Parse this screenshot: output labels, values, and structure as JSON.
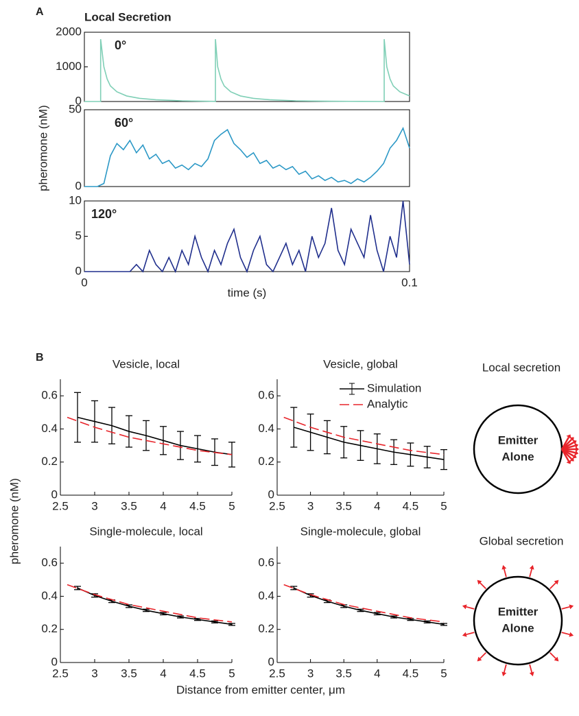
{
  "panels": [
    "A",
    "B"
  ],
  "chart_data": [
    {
      "type": "line",
      "title": "Local Secretion",
      "label": "0°",
      "box": true,
      "x": [
        0,
        0.005,
        0.005,
        0.006,
        0.007,
        0.008,
        0.01,
        0.013,
        0.017,
        0.022,
        0.03,
        0.0403,
        0.0403,
        0.041,
        0.042,
        0.043,
        0.045,
        0.048,
        0.052,
        0.057,
        0.065,
        0.075,
        0.085,
        0.0922,
        0.0922,
        0.093,
        0.094,
        0.095,
        0.097,
        0.1
      ],
      "series": [
        {
          "color": "#7fcfb6",
          "values": [
            0,
            0,
            1800,
            1000,
            650,
            450,
            280,
            160,
            90,
            50,
            20,
            5,
            1800,
            1000,
            650,
            450,
            280,
            160,
            90,
            50,
            20,
            8,
            3,
            0,
            1800,
            1000,
            650,
            450,
            280,
            160
          ]
        }
      ],
      "xlim": [
        0,
        0.1
      ],
      "ylim": [
        0,
        2000
      ],
      "yticks": [
        0,
        1000,
        2000
      ]
    },
    {
      "type": "line",
      "label": "60°",
      "ylabel": "pheromone (nM)",
      "box": true,
      "x": [
        0,
        0.002,
        0.004,
        0.006,
        0.008,
        0.01,
        0.012,
        0.014,
        0.016,
        0.018,
        0.02,
        0.022,
        0.024,
        0.026,
        0.028,
        0.03,
        0.032,
        0.034,
        0.036,
        0.038,
        0.04,
        0.042,
        0.044,
        0.046,
        0.048,
        0.05,
        0.052,
        0.054,
        0.056,
        0.058,
        0.06,
        0.062,
        0.064,
        0.066,
        0.068,
        0.07,
        0.072,
        0.074,
        0.076,
        0.078,
        0.08,
        0.082,
        0.084,
        0.086,
        0.088,
        0.09,
        0.092,
        0.094,
        0.096,
        0.098,
        0.1
      ],
      "series": [
        {
          "color": "#2b98c6",
          "values": [
            0,
            0,
            0,
            2,
            20,
            28,
            24,
            30,
            22,
            27,
            18,
            21,
            15,
            17,
            12,
            14,
            11,
            15,
            13,
            18,
            30,
            34,
            37,
            28,
            24,
            19,
            22,
            15,
            17,
            12,
            14,
            11,
            13,
            8,
            10,
            5,
            7,
            4,
            6,
            3,
            4,
            2,
            5,
            3,
            6,
            10,
            15,
            25,
            30,
            38,
            25
          ]
        }
      ],
      "xlim": [
        0,
        0.1
      ],
      "ylim": [
        0,
        50
      ],
      "yticks": [
        0,
        50
      ]
    },
    {
      "type": "line",
      "label": "120°",
      "xlabel": "time (s)",
      "box": true,
      "x": [
        0,
        0.002,
        0.004,
        0.006,
        0.008,
        0.01,
        0.012,
        0.014,
        0.016,
        0.018,
        0.02,
        0.022,
        0.024,
        0.026,
        0.028,
        0.03,
        0.032,
        0.034,
        0.036,
        0.038,
        0.04,
        0.042,
        0.044,
        0.046,
        0.048,
        0.05,
        0.052,
        0.054,
        0.056,
        0.058,
        0.06,
        0.062,
        0.064,
        0.066,
        0.068,
        0.07,
        0.072,
        0.074,
        0.076,
        0.078,
        0.08,
        0.082,
        0.084,
        0.086,
        0.088,
        0.09,
        0.092,
        0.094,
        0.096,
        0.098,
        0.1
      ],
      "series": [
        {
          "color": "#1f2e8c",
          "values": [
            0,
            0,
            0,
            0,
            0,
            0,
            0,
            0,
            1,
            0,
            3,
            1,
            0,
            2,
            0,
            3,
            1,
            5,
            2,
            0,
            3,
            1,
            4,
            6,
            2,
            0,
            3,
            5,
            1,
            0,
            2,
            4,
            1,
            3,
            0,
            5,
            2,
            4,
            9,
            3,
            1,
            6,
            4,
            2,
            8,
            3,
            0,
            5,
            2,
            10,
            1
          ]
        }
      ],
      "xlim": [
        0,
        0.1
      ],
      "ylim": [
        0,
        10
      ],
      "xticks": [
        0,
        0.1
      ],
      "yticks": [
        0,
        5,
        10
      ]
    },
    {
      "type": "line",
      "title": "Vesicle, local",
      "box": false,
      "series": [
        {
          "color": "#000000",
          "x": [
            2.75,
            3,
            3.25,
            3.5,
            3.75,
            4,
            4.25,
            4.5,
            4.75,
            5
          ],
          "values": [
            0.47,
            0.445,
            0.42,
            0.385,
            0.36,
            0.33,
            0.3,
            0.28,
            0.26,
            0.245
          ],
          "errors": [
            0.15,
            0.125,
            0.11,
            0.095,
            0.09,
            0.085,
            0.085,
            0.08,
            0.08,
            0.075
          ]
        },
        {
          "color": "#e8242a",
          "dashed": true,
          "x": [
            2.6,
            3,
            3.5,
            4,
            4.5,
            5
          ],
          "values": [
            0.47,
            0.41,
            0.35,
            0.31,
            0.27,
            0.245
          ]
        }
      ],
      "xlim": [
        2.5,
        5
      ],
      "ylim": [
        0,
        0.7
      ],
      "xticks": [
        2.5,
        3,
        3.5,
        4,
        4.5,
        5
      ],
      "yticks": [
        0,
        0.2,
        0.4,
        0.6
      ]
    },
    {
      "type": "line",
      "title": "Vesicle, global",
      "box": false,
      "legend": "upper right",
      "series": [
        {
          "name": "Simulation",
          "color": "#000000",
          "x": [
            2.75,
            3,
            3.25,
            3.5,
            3.75,
            4,
            4.25,
            4.5,
            4.75,
            5
          ],
          "values": [
            0.41,
            0.38,
            0.35,
            0.32,
            0.3,
            0.28,
            0.26,
            0.245,
            0.23,
            0.215
          ],
          "errors": [
            0.12,
            0.11,
            0.1,
            0.095,
            0.09,
            0.09,
            0.075,
            0.07,
            0.065,
            0.06
          ]
        },
        {
          "name": "Analytic",
          "color": "#e8242a",
          "dashed": true,
          "x": [
            2.6,
            3,
            3.5,
            4,
            4.5,
            5
          ],
          "values": [
            0.47,
            0.41,
            0.35,
            0.31,
            0.27,
            0.245
          ]
        }
      ],
      "xlim": [
        2.5,
        5
      ],
      "ylim": [
        0,
        0.7
      ],
      "xticks": [
        2.5,
        3,
        3.5,
        4,
        4.5,
        5
      ],
      "yticks": [
        0,
        0.2,
        0.4,
        0.6
      ]
    },
    {
      "type": "line",
      "title": "Single-molecule, local",
      "box": false,
      "series": [
        {
          "color": "#000000",
          "x": [
            2.75,
            3,
            3.25,
            3.5,
            3.75,
            4,
            4.25,
            4.5,
            4.75,
            5
          ],
          "values": [
            0.45,
            0.405,
            0.37,
            0.34,
            0.315,
            0.295,
            0.275,
            0.26,
            0.245,
            0.23
          ],
          "errors": [
            0.01,
            0.01,
            0.008,
            0.008,
            0.007,
            0.007,
            0.006,
            0.006,
            0.006,
            0.006
          ]
        },
        {
          "color": "#e8242a",
          "dashed": true,
          "x": [
            2.6,
            3,
            3.5,
            4,
            4.5,
            5
          ],
          "values": [
            0.47,
            0.41,
            0.35,
            0.31,
            0.27,
            0.245
          ]
        }
      ],
      "xlim": [
        2.5,
        5
      ],
      "ylim": [
        0,
        0.7
      ],
      "xticks": [
        2.5,
        3,
        3.5,
        4,
        4.5,
        5
      ],
      "yticks": [
        0,
        0.2,
        0.4,
        0.6
      ]
    },
    {
      "type": "line",
      "title": "Single-molecule, global",
      "box": false,
      "series": [
        {
          "color": "#000000",
          "x": [
            2.75,
            3,
            3.25,
            3.5,
            3.75,
            4,
            4.25,
            4.5,
            4.75,
            5
          ],
          "values": [
            0.45,
            0.405,
            0.37,
            0.34,
            0.315,
            0.295,
            0.275,
            0.26,
            0.245,
            0.23
          ],
          "errors": [
            0.01,
            0.01,
            0.008,
            0.008,
            0.007,
            0.007,
            0.006,
            0.006,
            0.006,
            0.006
          ]
        },
        {
          "color": "#e8242a",
          "dashed": true,
          "x": [
            2.6,
            3,
            3.5,
            4,
            4.5,
            5
          ],
          "values": [
            0.47,
            0.41,
            0.35,
            0.31,
            0.27,
            0.245
          ]
        }
      ],
      "xlim": [
        2.5,
        5
      ],
      "ylim": [
        0,
        0.7
      ],
      "xticks": [
        2.5,
        3,
        3.5,
        4,
        4.5,
        5
      ],
      "yticks": [
        0,
        0.2,
        0.4,
        0.6
      ]
    }
  ],
  "panel_b": {
    "ylabel": "pheromone (nM)",
    "xlabel": "Distance from emitter center, μm"
  },
  "diagrams": [
    {
      "title": "Local secretion",
      "label": [
        "Emitter",
        "Alone"
      ]
    },
    {
      "title": "Global secretion",
      "label": [
        "Emitter",
        "Alone"
      ]
    }
  ]
}
